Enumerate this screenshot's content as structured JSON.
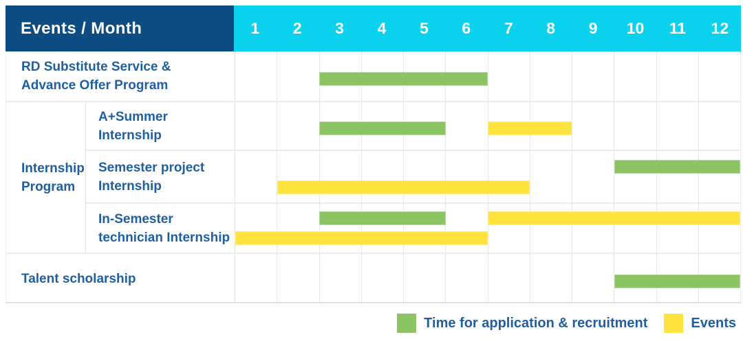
{
  "header": {
    "label": "Events / Month",
    "months": [
      "1",
      "2",
      "3",
      "4",
      "5",
      "6",
      "7",
      "8",
      "9",
      "10",
      "11",
      "12"
    ]
  },
  "group_cell": {
    "label_lines": [
      "Internship",
      "Program"
    ]
  },
  "legend": [
    {
      "name": "application",
      "label": "Time for application & recruitment",
      "color": "#8CC363"
    },
    {
      "name": "events",
      "label": "Events",
      "color": "#FFE33F"
    }
  ],
  "colors": {
    "header_navy": "#0C4C83",
    "header_cyan": "#0BD2EC",
    "label_text": "#1F5F9F",
    "header_text": "#FFFFFF",
    "application_green": "#8CC363",
    "events_yellow": "#FFE33F"
  },
  "chart_data": {
    "type": "table",
    "title": "Events / Month",
    "xlabel": "Month",
    "x_categories": [
      1,
      2,
      3,
      4,
      5,
      6,
      7,
      8,
      9,
      10,
      11,
      12
    ],
    "legend_position": "bottom-right",
    "series_names": [
      "Time for application & recruitment",
      "Events"
    ],
    "rows": [
      {
        "group": "",
        "label": "RD Substitute Service & Advance Offer Program",
        "label_lines": [
          "RD Substitute Service &",
          "Advance Offer Program"
        ],
        "bars": [
          {
            "series": "application",
            "start_month": 3,
            "end_month": 6,
            "lane": "single"
          }
        ]
      },
      {
        "group": "Internship Program",
        "label": "A+Summer Internship",
        "label_lines": [
          "A+Summer",
          "Internship"
        ],
        "bars": [
          {
            "series": "application",
            "start_month": 3,
            "end_month": 5,
            "lane": "single"
          },
          {
            "series": "events",
            "start_month": 7,
            "end_month": 8,
            "lane": "single"
          }
        ]
      },
      {
        "group": "Internship Program",
        "label": "Semester project Internship",
        "label_lines": [
          "Semester project",
          "Internship"
        ],
        "bars": [
          {
            "series": "application",
            "start_month": 10,
            "end_month": 12,
            "lane": "upper"
          },
          {
            "series": "events",
            "start_month": 2,
            "end_month": 7,
            "lane": "lower"
          }
        ]
      },
      {
        "group": "Internship Program",
        "label": "In-Semester technician Internship",
        "label_lines": [
          "In-Semester",
          "technician Internship"
        ],
        "bars": [
          {
            "series": "application",
            "start_month": 3,
            "end_month": 5,
            "lane": "upper"
          },
          {
            "series": "events",
            "start_month": 7,
            "end_month": 12,
            "lane": "upper"
          },
          {
            "series": "events",
            "start_month": 1,
            "end_month": 6,
            "lane": "lower"
          }
        ]
      },
      {
        "group": "",
        "label": "Talent scholarship",
        "label_lines": [
          "Talent scholarship"
        ],
        "bars": [
          {
            "series": "application",
            "start_month": 10,
            "end_month": 12,
            "lane": "single"
          }
        ]
      }
    ]
  }
}
